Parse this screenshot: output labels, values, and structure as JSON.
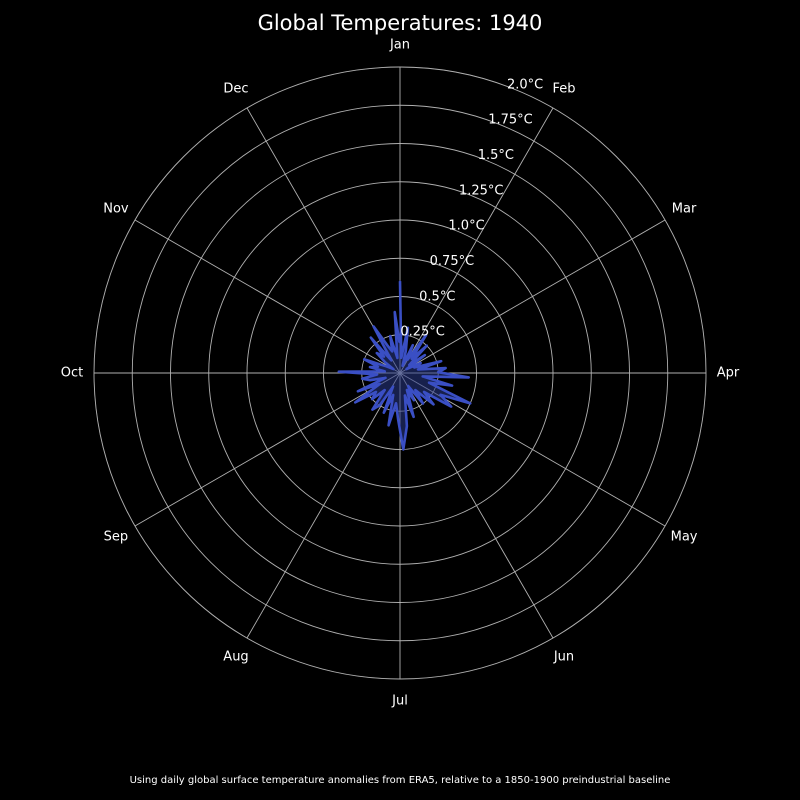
{
  "chart_data": {
    "type": "polar-line",
    "title": "Global Temperatures: 1940",
    "caption": "Using daily global surface temperature anomalies from ERA5, relative to a 1850-1900 preindustrial baseline",
    "theta_labels": [
      "Jan",
      "Feb",
      "Mar",
      "Apr",
      "May",
      "Jun",
      "Jul",
      "Aug",
      "Sep",
      "Oct",
      "Nov",
      "Dec"
    ],
    "theta_start": "top",
    "theta_direction": "clockwise",
    "r_ticks": [
      0.25,
      0.5,
      0.75,
      1.0,
      1.25,
      1.5,
      1.75,
      2.0
    ],
    "r_tick_labels": [
      "0.25°C",
      "0.5°C",
      "0.75°C",
      "1.0°C",
      "1.25°C",
      "1.5°C",
      "1.75°C",
      "2.0°C"
    ],
    "rlim": [
      0,
      2.0
    ],
    "grid": true,
    "background_color": "#000000",
    "grid_color": "#b0b0b0",
    "line_color": "#3a4fc4",
    "fill_color": "#2a3a8a",
    "series": [
      {
        "day_of_year": [
          1,
          6,
          11,
          16,
          21,
          26,
          31,
          36,
          41,
          46,
          51,
          56,
          61,
          66,
          71,
          76,
          81,
          86,
          91,
          96,
          101,
          106,
          111,
          116,
          121,
          126,
          131,
          136,
          141,
          146,
          151,
          156,
          161,
          166,
          171,
          176,
          181,
          186,
          191,
          196,
          201,
          206,
          211,
          216,
          221,
          226,
          231,
          236,
          241,
          246,
          251,
          256,
          261,
          266,
          271,
          276,
          281,
          286,
          291,
          296,
          301,
          306,
          311,
          316,
          321,
          326,
          331,
          336,
          341,
          346,
          351,
          356,
          361,
          365
        ],
        "values": [
          0.6,
          0.1,
          0.3,
          0.15,
          0.05,
          0.2,
          0.1,
          0.3,
          0.12,
          0.25,
          0.08,
          0.2,
          0.05,
          0.15,
          0.1,
          0.28,
          0.12,
          0.3,
          0.25,
          0.45,
          0.15,
          0.35,
          0.2,
          0.5,
          0.3,
          0.4,
          0.2,
          0.3,
          0.15,
          0.25,
          0.1,
          0.2,
          0.12,
          0.3,
          0.15,
          0.35,
          0.5,
          0.3,
          0.2,
          0.35,
          0.15,
          0.28,
          0.1,
          0.25,
          0.3,
          0.15,
          0.25,
          0.2,
          0.35,
          0.15,
          0.3,
          0.1,
          0.2,
          0.25,
          0.15,
          0.4,
          0.1,
          0.2,
          0.15,
          0.25,
          0.1,
          0.05,
          0.12,
          0.2,
          0.15,
          0.3,
          0.1,
          0.35,
          0.2,
          0.15,
          0.25,
          0.1,
          0.4,
          0.2
        ]
      }
    ]
  }
}
